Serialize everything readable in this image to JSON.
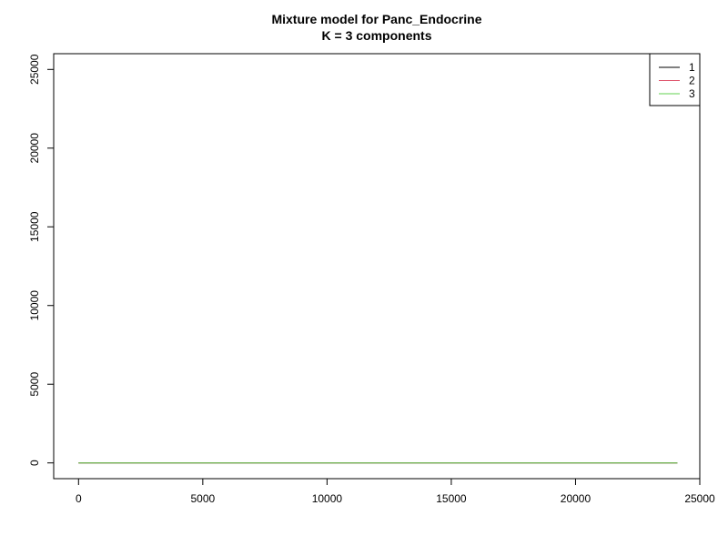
{
  "chart_data": {
    "type": "line",
    "title": "Mixture model for Panc_Endocrine",
    "subtitle": "K = 3 components",
    "xlabel": "",
    "ylabel": "",
    "xlim": [
      -1000,
      25000
    ],
    "ylim": [
      -1000,
      26000
    ],
    "x_ticks": [
      0,
      5000,
      10000,
      15000,
      20000,
      25000
    ],
    "y_ticks": [
      0,
      5000,
      10000,
      15000,
      20000,
      25000
    ],
    "grid": false,
    "legend_position": "top-right",
    "series": [
      {
        "name": "1",
        "color": "#000000",
        "x": [
          0,
          24100
        ],
        "y": [
          0,
          0
        ]
      },
      {
        "name": "2",
        "color": "#DF536B",
        "x": [
          0,
          24100
        ],
        "y": [
          0,
          0
        ]
      },
      {
        "name": "3",
        "color": "#61D04F",
        "x": [
          0,
          24100
        ],
        "y": [
          0,
          0
        ]
      }
    ]
  }
}
